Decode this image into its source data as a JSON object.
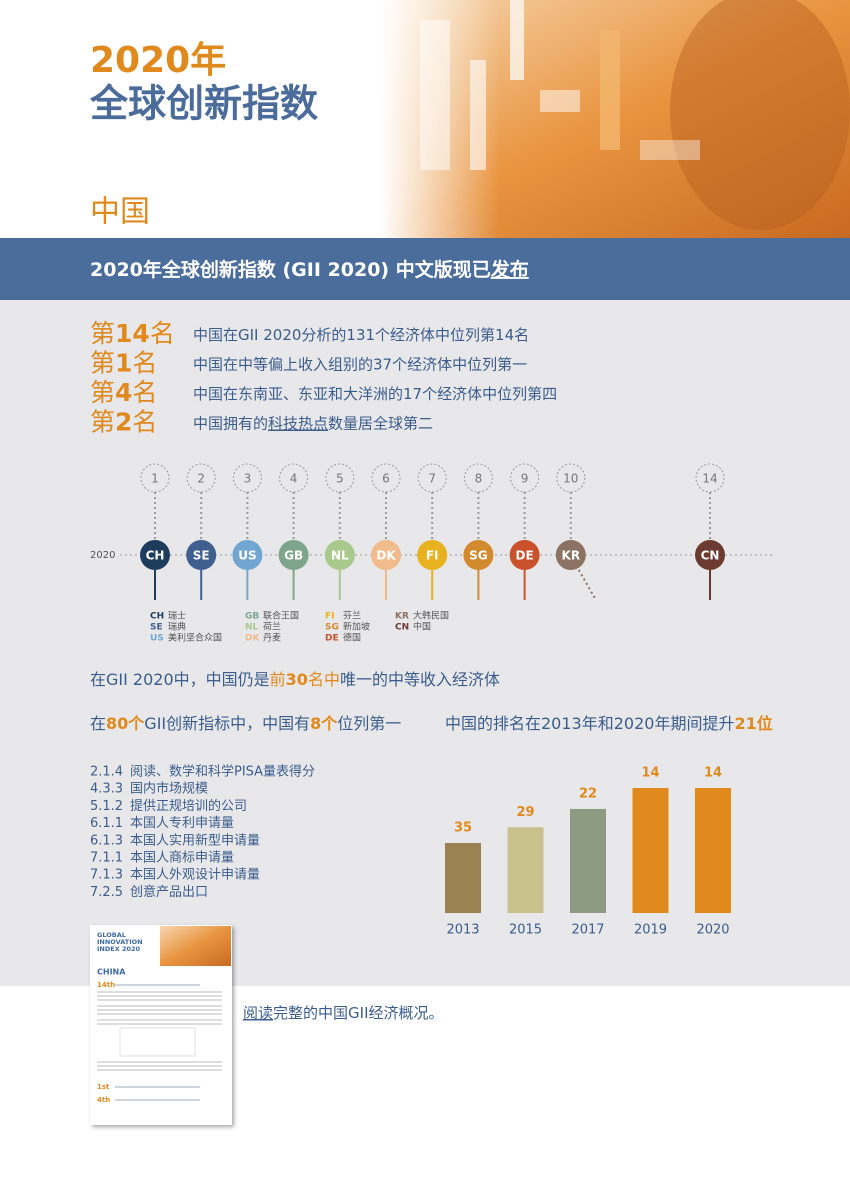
{
  "header": {
    "year": "2020年",
    "title": "全球创新指数",
    "country": "中国"
  },
  "banner": [
    "2020年全球创新指数 (GII 2020) 中文版现已",
    "发布"
  ],
  "ranks": [
    {
      "label": [
        "第",
        "14",
        "名"
      ],
      "text": [
        "中国在GII 2020分析的131个经济体中位列第14名"
      ]
    },
    {
      "label": [
        "第",
        "1",
        "名"
      ],
      "text": [
        "中国在中等偏上收入组别的37个经济体中位列第一"
      ]
    },
    {
      "label": [
        "第",
        "4",
        "名"
      ],
      "text": [
        "中国在东南亚、东亚和大洋洲的17个经济体中位列第四"
      ]
    },
    {
      "label": [
        "第",
        "2",
        "名"
      ],
      "text": [
        "中国拥有的",
        "科技热点",
        "数量居全球第二"
      ]
    }
  ],
  "timeline": {
    "year": "2020",
    "positions": [
      {
        "rank": 1,
        "code": "CH",
        "color": "#1d3c5e"
      },
      {
        "rank": 2,
        "code": "SE",
        "color": "#3f5f8e"
      },
      {
        "rank": 3,
        "code": "US",
        "color": "#72a6d2"
      },
      {
        "rank": 4,
        "code": "GB",
        "color": "#7ea58c"
      },
      {
        "rank": 5,
        "code": "NL",
        "color": "#a9c98c"
      },
      {
        "rank": 6,
        "code": "DK",
        "color": "#f1bb8c"
      },
      {
        "rank": 7,
        "code": "FI",
        "color": "#e8b11f"
      },
      {
        "rank": 8,
        "code": "SG",
        "color": "#d28a2f"
      },
      {
        "rank": 9,
        "code": "DE",
        "color": "#c9512b"
      },
      {
        "rank": 10,
        "code": "KR",
        "color": "#8b7262"
      },
      {
        "rank": 14,
        "code": "CN",
        "color": "#6b3b31"
      }
    ],
    "legend": [
      [
        {
          "code": "CH",
          "name": "瑞士"
        },
        {
          "code": "SE",
          "name": "瑞典"
        },
        {
          "code": "US",
          "name": "美利坚合众国"
        }
      ],
      [
        {
          "code": "GB",
          "name": "联合王国"
        },
        {
          "code": "NL",
          "name": "荷兰"
        },
        {
          "code": "DK",
          "name": "丹麦"
        }
      ],
      [
        {
          "code": "FI",
          "name": "芬兰"
        },
        {
          "code": "SG",
          "name": "新加坡"
        },
        {
          "code": "DE",
          "name": "德国"
        }
      ],
      [
        {
          "code": "KR",
          "name": "大韩民国"
        },
        {
          "code": "CN",
          "name": "中国"
        }
      ]
    ]
  },
  "statement": [
    "在GII 2020中，中国仍是",
    "前",
    "30",
    "名中",
    "唯一的中等收入经济体"
  ],
  "indicators": {
    "heading": [
      "在",
      "80个",
      "GII创新指标中，中国有",
      "8个",
      "位列第一"
    ],
    "items": [
      {
        "code": "2.1.4",
        "label": "阅读、数学和科学PISA量表得分"
      },
      {
        "code": "4.3.3",
        "label": "国内市场规模"
      },
      {
        "code": "5.1.2",
        "label": "提供正规培训的公司"
      },
      {
        "code": "6.1.1",
        "label": "本国人专利申请量"
      },
      {
        "code": "6.1.3",
        "label": "本国人实用新型申请量"
      },
      {
        "code": "7.1.1",
        "label": "本国人商标申请量"
      },
      {
        "code": "7.1.3",
        "label": "本国人外观设计申请量"
      },
      {
        "code": "7.2.5",
        "label": "创意产品出口"
      }
    ]
  },
  "chart_title": [
    "中国的排名在2013年和2020年期间提升",
    "21位"
  ],
  "chart_data": {
    "type": "bar",
    "categories": [
      "2013",
      "2015",
      "2017",
      "2019",
      "2020"
    ],
    "values": [
      35,
      29,
      22,
      14,
      14
    ],
    "colors": [
      "#9c8152",
      "#c9c18b",
      "#8c9b82",
      "#e08a1e",
      "#e08a1e"
    ],
    "label_color": "#e08a1e"
  },
  "thumbnail": {
    "title": [
      "GLOBAL",
      "INNOVATION",
      "INDEX 2020"
    ],
    "country": "CHINA",
    "ranks": [
      "14th",
      "1st",
      "4th"
    ]
  },
  "report_link": [
    "阅读",
    "完整的中国GII经济概况。"
  ]
}
